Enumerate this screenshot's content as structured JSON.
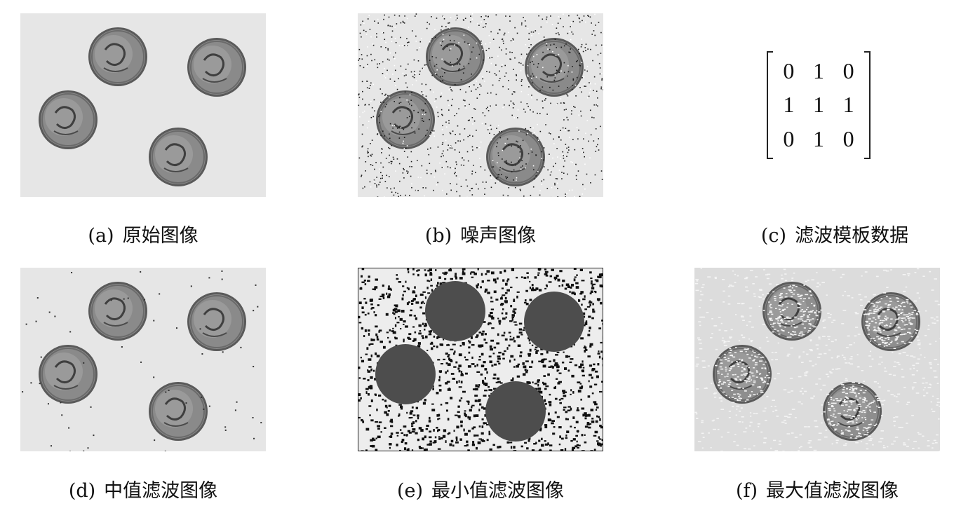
{
  "panels": {
    "a": {
      "tag": "(a)",
      "label": "原始图像",
      "variant": "original"
    },
    "b": {
      "tag": "(b)",
      "label": "噪声图像",
      "variant": "noisy"
    },
    "c": {
      "tag": "(c)",
      "label": "滤波模板数据"
    },
    "d": {
      "tag": "(d)",
      "label": "中值滤波图像",
      "variant": "median"
    },
    "e": {
      "tag": "(e)",
      "label": "最小值滤波图像",
      "variant": "min"
    },
    "f": {
      "tag": "(f)",
      "label": "最大值滤波图像",
      "variant": "max"
    }
  },
  "filter_mask": {
    "rows": [
      [
        "0",
        "1",
        "0"
      ],
      [
        "1",
        "1",
        "1"
      ],
      [
        "0",
        "1",
        "0"
      ]
    ]
  },
  "colors": {
    "background": "#e6e6e6",
    "coin": "#8a8a8a",
    "coin_dark": "#4a4a4a",
    "min_coin": "#4d4d4d",
    "max_bg": "#dcdcdc"
  }
}
